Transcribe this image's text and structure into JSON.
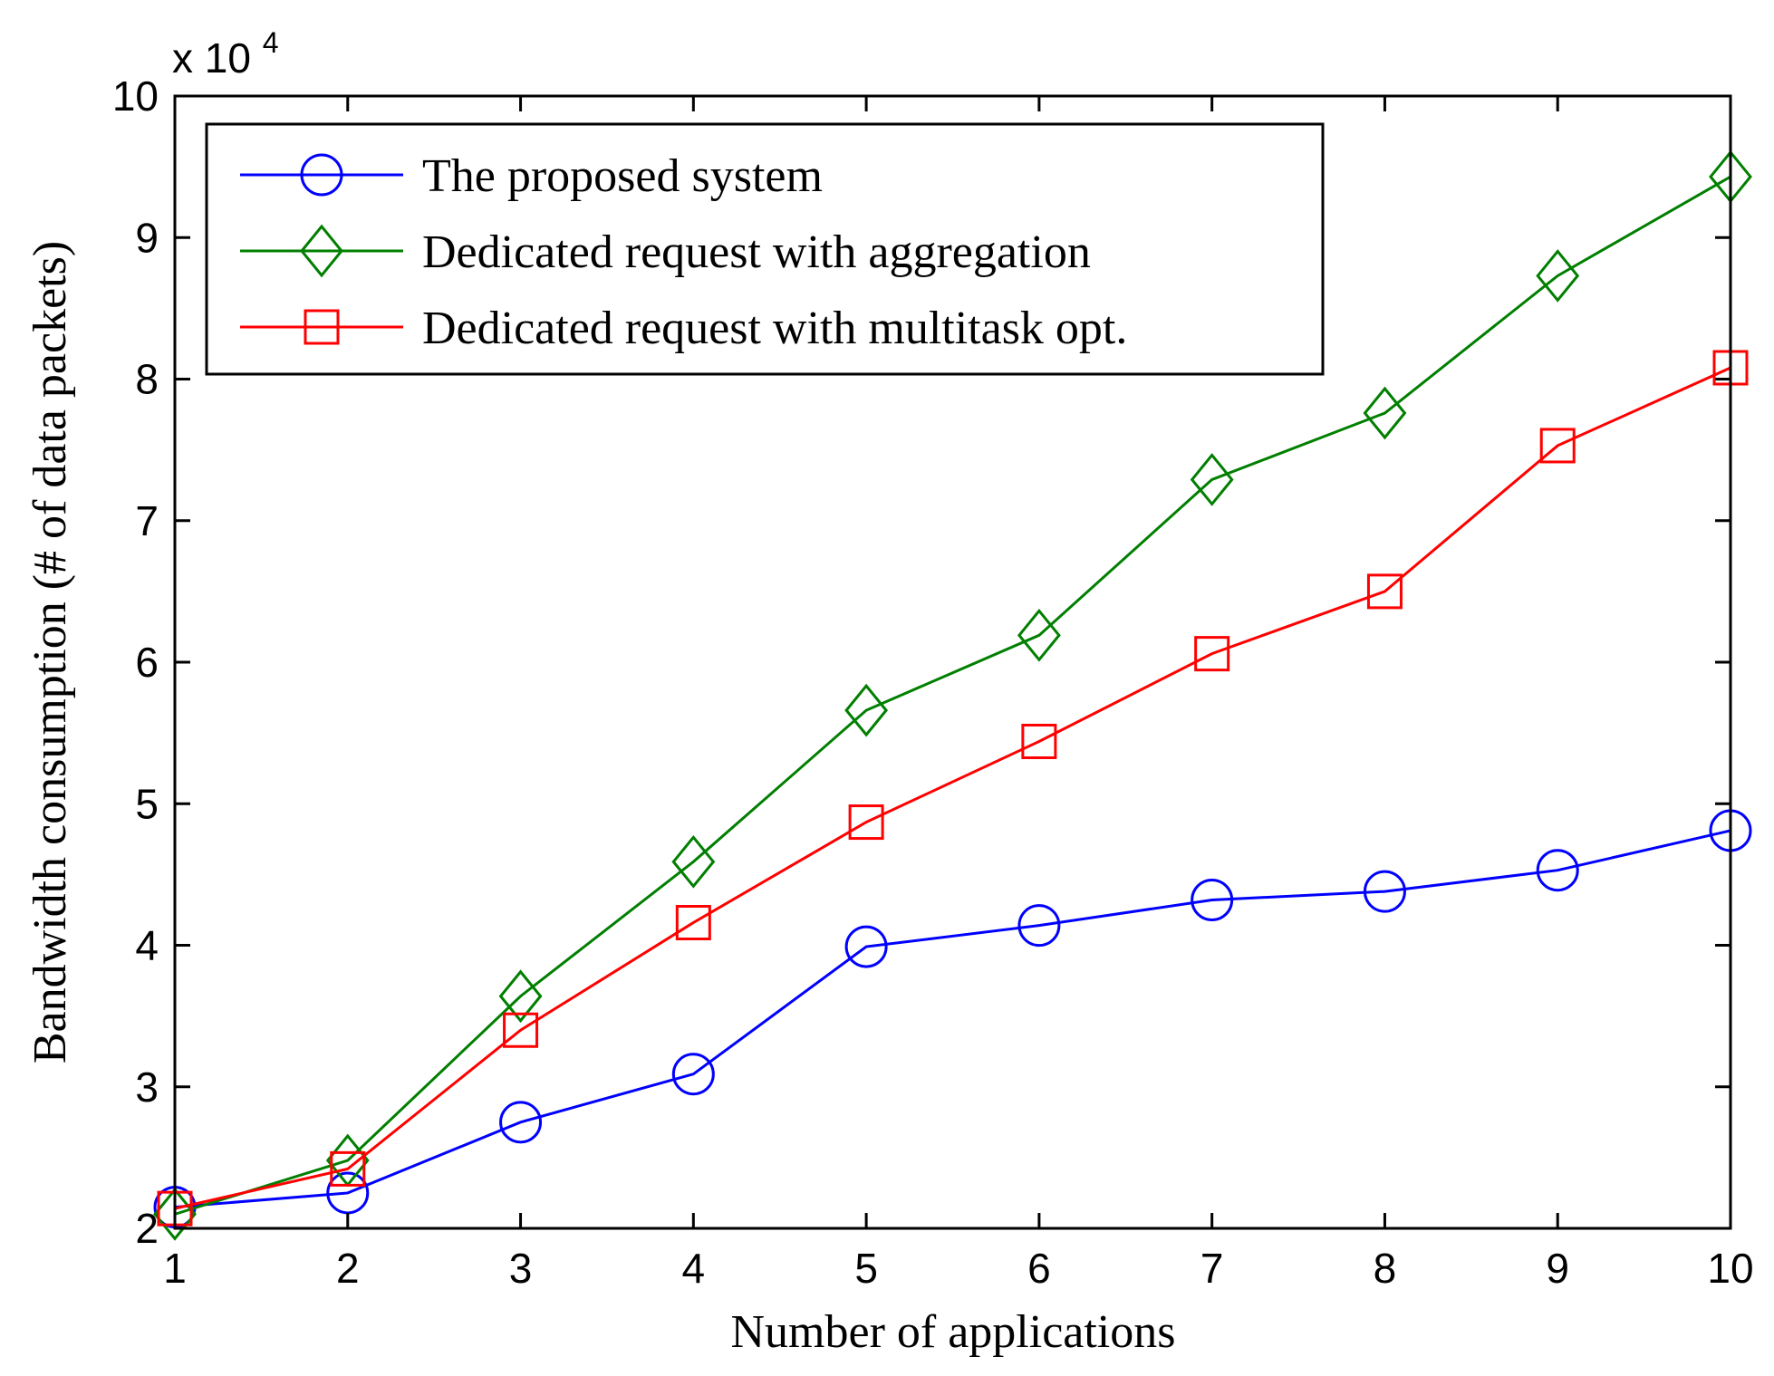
{
  "chart_data": {
    "type": "line",
    "title": "",
    "xlabel": "Number of applications",
    "ylabel": "Bandwidth consumption (# of data packets)",
    "y_multiplier": {
      "base": "x 10",
      "exponent": "4"
    },
    "x": [
      1,
      2,
      3,
      4,
      5,
      6,
      7,
      8,
      9,
      10
    ],
    "xlim": [
      1,
      10
    ],
    "ylim": [
      2,
      10
    ],
    "xticks": [
      "1",
      "2",
      "3",
      "4",
      "5",
      "6",
      "7",
      "8",
      "9",
      "10"
    ],
    "yticks": [
      "2",
      "3",
      "4",
      "5",
      "6",
      "7",
      "8",
      "9",
      "10"
    ],
    "grid": false,
    "legend_position": "top-left",
    "series": [
      {
        "name": "The proposed system",
        "color": "#0000ff",
        "marker": "circle",
        "values": [
          2.15,
          2.25,
          2.75,
          3.09,
          3.99,
          4.14,
          4.32,
          4.38,
          4.53,
          4.81
        ]
      },
      {
        "name": "Dedicated request with aggregation",
        "color": "#007f00",
        "marker": "diamond",
        "values": [
          2.1,
          2.48,
          3.64,
          4.59,
          5.66,
          6.19,
          7.29,
          7.76,
          8.73,
          9.43
        ]
      },
      {
        "name": "Dedicated request with multitask opt.",
        "color": "#ff0000",
        "marker": "square",
        "values": [
          2.14,
          2.42,
          3.4,
          4.16,
          4.87,
          5.44,
          6.06,
          6.5,
          7.53,
          8.08
        ]
      }
    ]
  }
}
